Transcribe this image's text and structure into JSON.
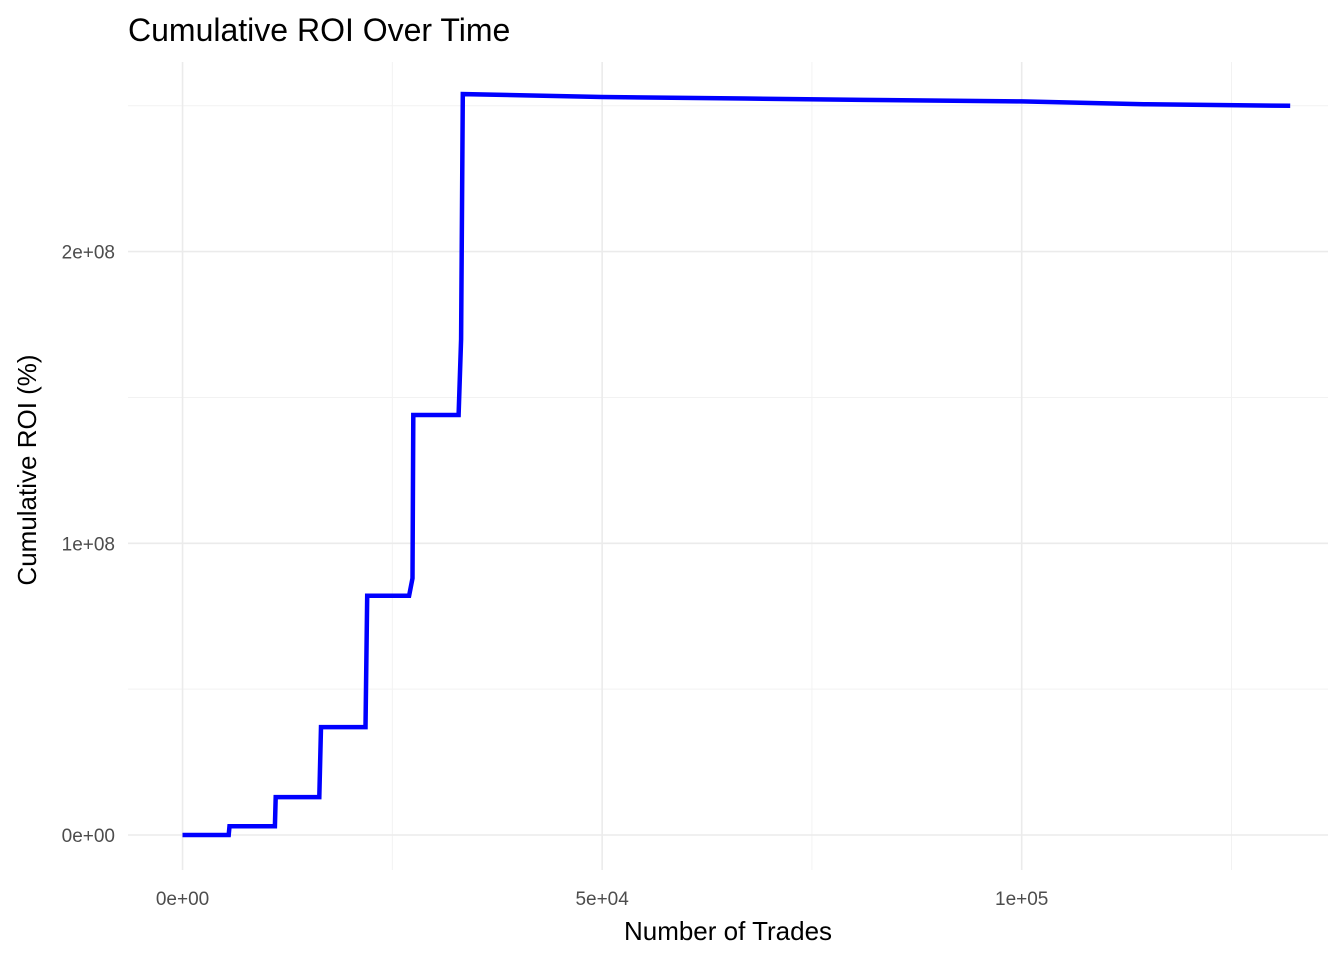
{
  "chart_data": {
    "type": "line",
    "title": "Cumulative ROI Over Time",
    "xlabel": "Number of Trades",
    "ylabel": "Cumulative ROI (%)",
    "xlim": [
      -6500,
      136500
    ],
    "ylim": [
      -12000000,
      265000000
    ],
    "x_major_ticks": [
      {
        "value": 0,
        "label": "0e+00"
      },
      {
        "value": 50000,
        "label": "5e+04"
      },
      {
        "value": 100000,
        "label": "1e+05"
      }
    ],
    "x_minor_ticks": [
      25000,
      75000,
      125000
    ],
    "y_major_ticks": [
      {
        "value": 0,
        "label": "0e+00"
      },
      {
        "value": 100000000,
        "label": "1e+08"
      },
      {
        "value": 200000000,
        "label": "2e+08"
      }
    ],
    "y_minor_ticks": [
      50000000,
      150000000,
      250000000
    ],
    "grid": true,
    "legend": "none",
    "series": [
      {
        "color": "#0000ff",
        "x": [
          0,
          5500,
          5600,
          11000,
          11100,
          16300,
          16500,
          21800,
          22000,
          27000,
          27400,
          27500,
          32900,
          33200,
          33400,
          50000,
          67000,
          81000,
          100000,
          115000,
          132000
        ],
        "y": [
          0,
          0,
          3000000,
          3000000,
          13000000,
          13000000,
          37000000,
          37000000,
          82000000,
          82000000,
          88000000,
          144000000,
          144000000,
          170000000,
          254000000,
          253000000,
          252500000,
          252000000,
          251500000,
          250500000,
          250000000
        ]
      }
    ]
  }
}
